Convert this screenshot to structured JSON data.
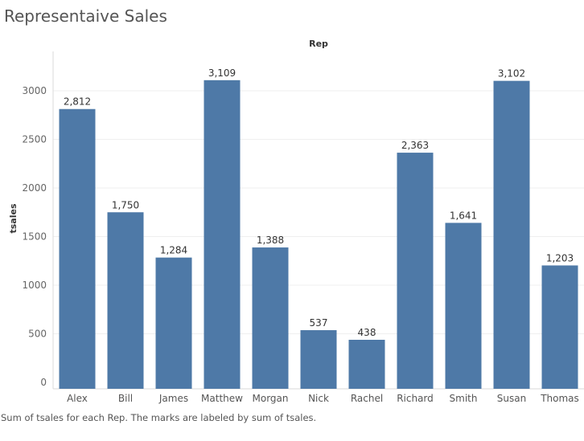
{
  "title": "Representaive Sales",
  "caption": "Sum of tsales for each Rep.  The marks are labeled by sum of tsales.",
  "colors": {
    "bar": "#4e79a7",
    "grid": "#efefef",
    "axis": "#d9d9d9"
  },
  "chart_data": {
    "type": "bar",
    "xlabel": "Rep",
    "ylabel": "tsales",
    "categories": [
      "Alex",
      "Bill",
      "James",
      "Matthew",
      "Morgan",
      "Nick",
      "Rachel",
      "Richard",
      "Smith",
      "Susan",
      "Thomas"
    ],
    "values": [
      2812,
      1750,
      1284,
      3109,
      1388,
      537,
      438,
      2363,
      1641,
      3102,
      1203
    ],
    "value_labels": [
      "2,812",
      "1,750",
      "1,284",
      "3,109",
      "1,388",
      "537",
      "438",
      "2,363",
      "1,641",
      "3,102",
      "1,203"
    ],
    "yticks": [
      0,
      500,
      1000,
      1500,
      2000,
      2500,
      3000
    ],
    "ylim": [
      0,
      3250
    ],
    "grid": true,
    "legend": "none"
  }
}
